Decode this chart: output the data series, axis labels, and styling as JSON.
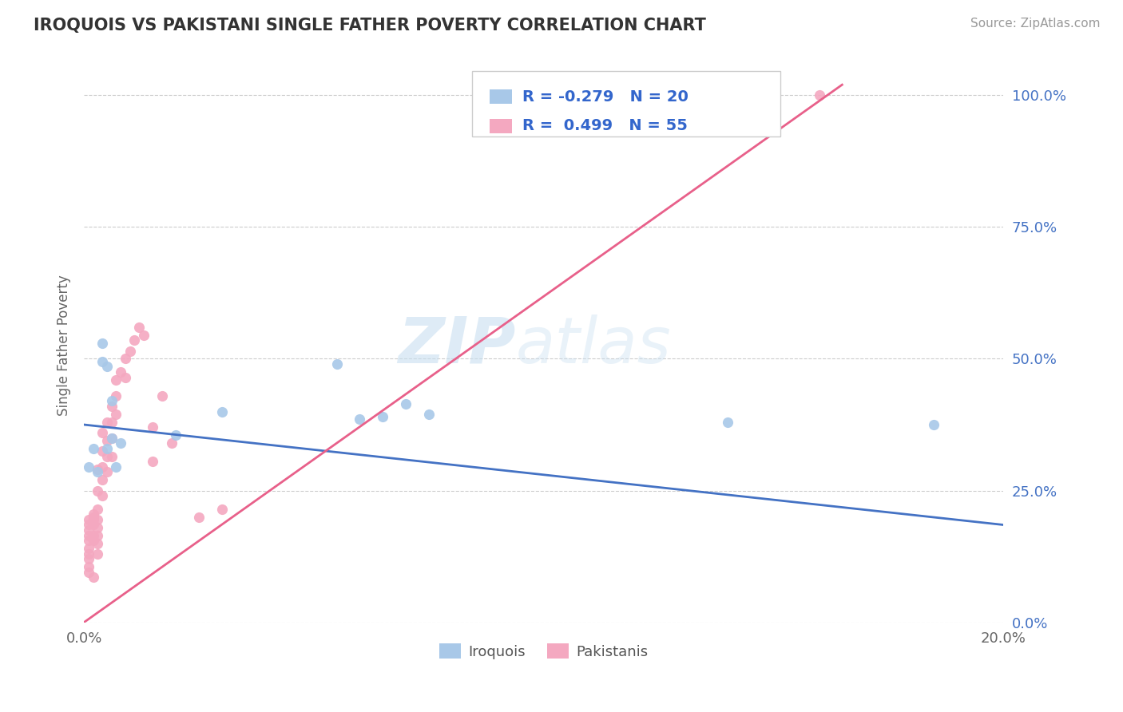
{
  "title": "IROQUOIS VS PAKISTANI SINGLE FATHER POVERTY CORRELATION CHART",
  "source": "Source: ZipAtlas.com",
  "ylabel": "Single Father Poverty",
  "xlim": [
    0.0,
    0.2
  ],
  "ylim": [
    0.0,
    1.05
  ],
  "iroquois_color": "#a8c8e8",
  "pakistani_color": "#f4a8c0",
  "iroquois_line_color": "#4472c4",
  "pakistani_line_color": "#e8608a",
  "legend_r_iroquois": "-0.279",
  "legend_n_iroquois": "20",
  "legend_r_pakistani": "0.499",
  "legend_n_pakistani": "55",
  "watermark_zip": "ZIP",
  "watermark_atlas": "atlas",
  "iroquois_x": [
    0.001,
    0.002,
    0.003,
    0.004,
    0.004,
    0.005,
    0.005,
    0.006,
    0.006,
    0.007,
    0.008,
    0.02,
    0.03,
    0.055,
    0.06,
    0.065,
    0.07,
    0.075,
    0.14,
    0.185
  ],
  "iroquois_y": [
    0.295,
    0.33,
    0.285,
    0.495,
    0.53,
    0.485,
    0.33,
    0.42,
    0.35,
    0.295,
    0.34,
    0.355,
    0.4,
    0.49,
    0.385,
    0.39,
    0.415,
    0.395,
    0.38,
    0.375
  ],
  "pakistani_x": [
    0.001,
    0.001,
    0.001,
    0.001,
    0.001,
    0.001,
    0.001,
    0.001,
    0.001,
    0.001,
    0.002,
    0.002,
    0.002,
    0.002,
    0.002,
    0.002,
    0.002,
    0.003,
    0.003,
    0.003,
    0.003,
    0.003,
    0.003,
    0.003,
    0.003,
    0.004,
    0.004,
    0.004,
    0.004,
    0.004,
    0.005,
    0.005,
    0.005,
    0.005,
    0.006,
    0.006,
    0.006,
    0.006,
    0.007,
    0.007,
    0.007,
    0.008,
    0.009,
    0.009,
    0.01,
    0.011,
    0.012,
    0.013,
    0.015,
    0.015,
    0.017,
    0.019,
    0.025,
    0.03,
    0.16
  ],
  "pakistani_y": [
    0.195,
    0.185,
    0.175,
    0.165,
    0.155,
    0.14,
    0.13,
    0.12,
    0.105,
    0.095,
    0.205,
    0.2,
    0.195,
    0.185,
    0.165,
    0.155,
    0.085,
    0.29,
    0.25,
    0.215,
    0.195,
    0.18,
    0.165,
    0.15,
    0.13,
    0.36,
    0.325,
    0.295,
    0.27,
    0.24,
    0.38,
    0.345,
    0.315,
    0.285,
    0.41,
    0.38,
    0.35,
    0.315,
    0.46,
    0.43,
    0.395,
    0.475,
    0.5,
    0.465,
    0.515,
    0.535,
    0.56,
    0.545,
    0.37,
    0.305,
    0.43,
    0.34,
    0.2,
    0.215,
    1.0
  ]
}
